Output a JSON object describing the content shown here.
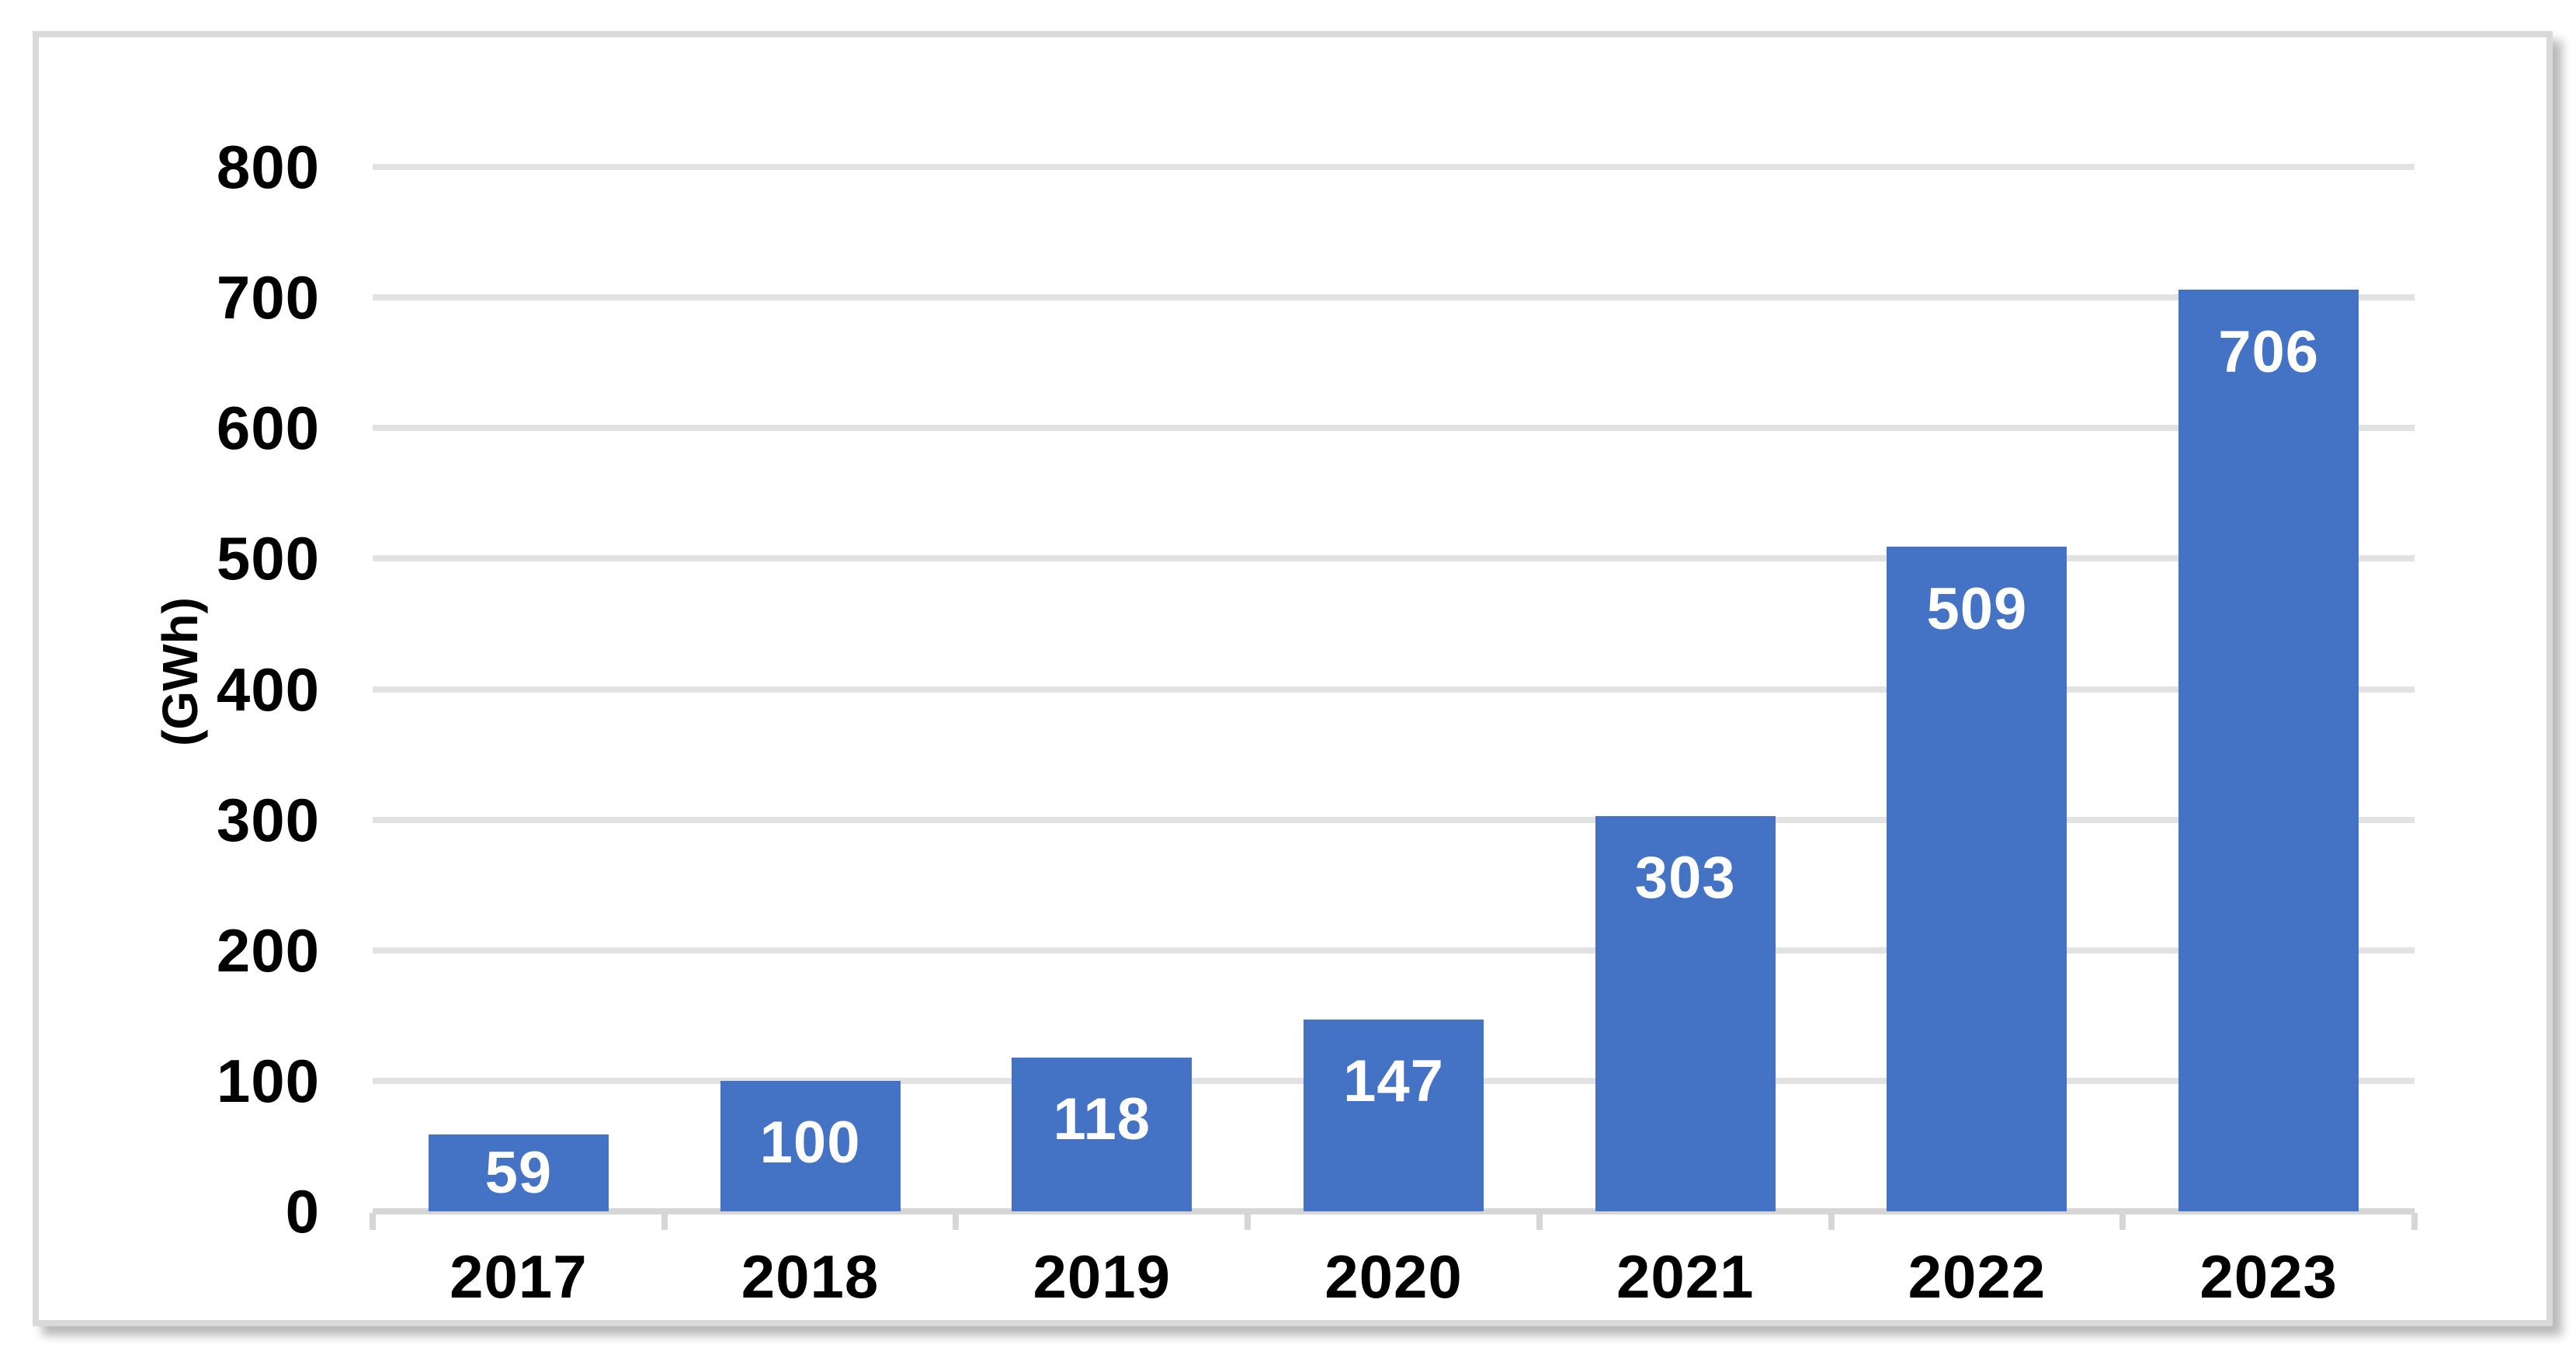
{
  "chart_data": {
    "type": "bar",
    "title": "",
    "categories": [
      "2017",
      "2018",
      "2019",
      "2020",
      "2021",
      "2022",
      "2023"
    ],
    "values": [
      59,
      100,
      118,
      147,
      303,
      509,
      706
    ],
    "xlabel": "",
    "ylabel": "(GWh)",
    "ylim": [
      0,
      800
    ],
    "yticks": [
      0,
      100,
      200,
      300,
      400,
      500,
      600,
      700,
      800
    ],
    "grid": "horizontal",
    "legend_position": "none",
    "data_labels_position": "inside-end",
    "colors": {
      "bar": "#4472C4",
      "gridline": "#E2E2E2",
      "axis_line": "#D6D6D6",
      "frame_border": "#D9D9D9",
      "axis_text": "#000000",
      "data_label_text": "#FFFFFF",
      "background": "#FFFFFF"
    }
  }
}
